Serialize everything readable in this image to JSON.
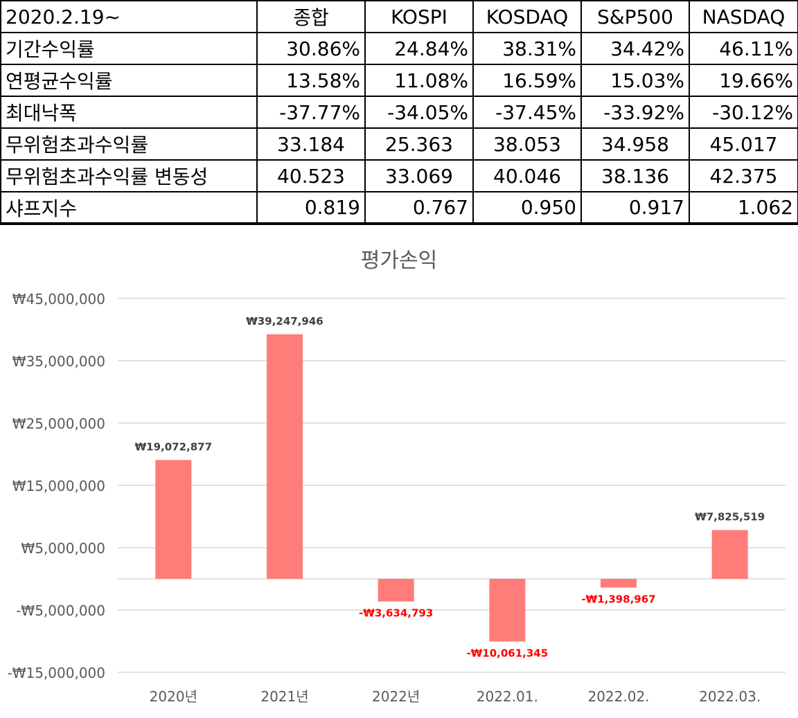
{
  "table": {
    "corner": "2020.2.19~",
    "columns": [
      "종합",
      "KOSPI",
      "KOSDAQ",
      "S&P500",
      "NASDAQ"
    ],
    "rows": [
      {
        "label": "기간수익률",
        "values": [
          "30.86%",
          "24.84%",
          "38.31%",
          "34.42%",
          "46.11%"
        ]
      },
      {
        "label": "연평균수익률",
        "values": [
          "13.58%",
          "11.08%",
          "16.59%",
          "15.03%",
          "19.66%"
        ]
      },
      {
        "label": "최대낙폭",
        "values": [
          "-37.77%",
          "-34.05%",
          "-37.45%",
          "-33.92%",
          "-30.12%"
        ]
      },
      {
        "label": "무위험초과수익률",
        "values": [
          "33.184",
          "25.363",
          "38.053",
          "34.958",
          "45.017"
        ]
      },
      {
        "label": "무위험초과수익률 변동성",
        "values": [
          "40.523",
          "33.069",
          "40.046",
          "38.136",
          "42.375"
        ]
      },
      {
        "label": "샤프지수",
        "values": [
          "0.819",
          "0.767",
          "0.950",
          "0.917",
          "1.062"
        ]
      }
    ]
  },
  "chart_data": {
    "type": "bar",
    "title": "평가손익",
    "categories": [
      "2020년",
      "2021년",
      "2022년",
      "2022.01.",
      "2022.02.",
      "2022.03."
    ],
    "values": [
      19072877,
      39247946,
      -3634793,
      -10061345,
      -1398967,
      7825519
    ],
    "data_labels": [
      "₩19,072,877",
      "₩39,247,946",
      "-₩3,634,793",
      "-₩10,061,345",
      "-₩1,398,967",
      "₩7,825,519"
    ],
    "yticks": [
      45000000,
      35000000,
      25000000,
      15000000,
      5000000,
      -5000000,
      -15000000
    ],
    "ytick_labels": [
      "₩45,000,000",
      "₩35,000,000",
      "₩25,000,000",
      "₩15,000,000",
      "₩5,000,000",
      "-₩5,000,000",
      "-₩15,000,000"
    ],
    "ylim": [
      -15000000,
      45000000
    ],
    "grid": true,
    "colors": {
      "bar": "#ff7c78",
      "negative_label": "#ff0000",
      "positive_label": "#404040",
      "axis_text": "#595959",
      "grid": "#d9d9d9",
      "title": "#595959"
    }
  }
}
